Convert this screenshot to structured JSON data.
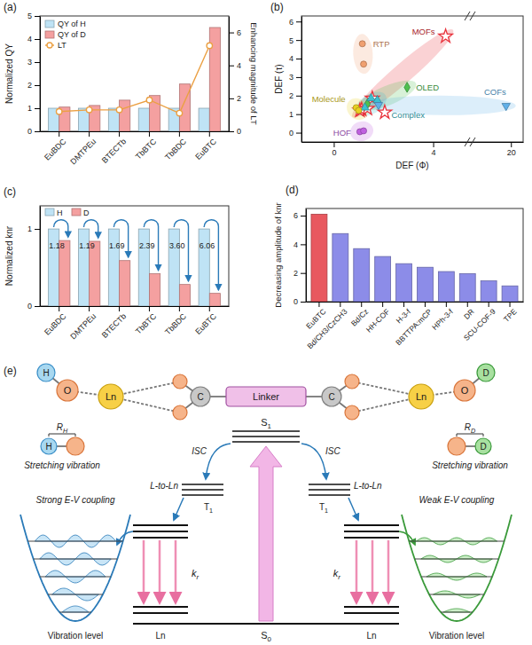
{
  "chart_data": [
    {
      "panel": "(a)",
      "type": "bar",
      "categories": [
        "EuBDC",
        "DMTPEu",
        "BTECTb",
        "TbBTC",
        "TbBDC",
        "EuBTC"
      ],
      "series": [
        {
          "name": "QY of H",
          "type": "bar",
          "color": "#bfe3f5",
          "values": [
            1,
            1,
            1,
            1,
            1,
            1
          ]
        },
        {
          "name": "QY of D",
          "type": "bar",
          "color": "#f4a0a0",
          "values": [
            1.05,
            1.12,
            1.35,
            1.55,
            2.05,
            4.5
          ]
        },
        {
          "name": "LT",
          "type": "line",
          "marker": "circle",
          "color": "#eba043",
          "axis": "y2",
          "values": [
            1.2,
            1.3,
            1.3,
            1.9,
            1.1,
            5.2
          ]
        }
      ],
      "y_title": "Normalized QY",
      "y2_title": "Enhancing magnitude of LT",
      "ylim": [
        0,
        5
      ],
      "yticks": [
        0,
        1,
        2,
        3,
        4,
        5
      ],
      "y2lim": [
        0,
        7
      ],
      "y2ticks": [
        0,
        2,
        4,
        6
      ],
      "legend": "upper left"
    },
    {
      "panel": "(b)",
      "type": "scatter",
      "series": [
        {
          "name": "RTP",
          "color": "#f0a070",
          "marker": "circle",
          "x": [
            1.15,
            1.2
          ],
          "y": [
            4.8,
            3.7
          ]
        },
        {
          "name": "MOFs",
          "color": "#e8323c",
          "marker": "star",
          "x": [
            1.05,
            1.12,
            1.35,
            1.55,
            2.05,
            4.5
          ],
          "y": [
            1.2,
            1.25,
            1.3,
            1.85,
            1.1,
            5.2
          ]
        },
        {
          "name": "OLED",
          "color": "#4fc04f",
          "marker": "diamond",
          "x": [
            1.35,
            2.95
          ],
          "y": [
            1.55,
            2.45
          ]
        },
        {
          "name": "Complex",
          "color": "#3cc0d0",
          "marker": "triangle",
          "x": [
            1.5,
            1.75,
            1.25
          ],
          "y": [
            1.85,
            1.75,
            1.35
          ]
        },
        {
          "name": "Molecule",
          "color": "#e8d020",
          "marker": "circle",
          "x": [
            0.9,
            1.0
          ],
          "y": [
            1.35,
            1.2
          ]
        },
        {
          "name": "COFs",
          "color": "#60b0e8",
          "marker": "triangle-down",
          "x": [
            1.8,
            19.2
          ],
          "y": [
            1.5,
            1.45
          ]
        },
        {
          "name": "HOF",
          "color": "#c060e0",
          "marker": "circle",
          "x": [
            1.05,
            1.2
          ],
          "y": [
            0.05,
            0.1
          ]
        }
      ],
      "x_title": "DEF (Φ)",
      "y_title": "DEF (τ)",
      "xlim": [
        -1.3,
        22
      ],
      "x_break": [
        5.3,
        14
      ],
      "xticks": [
        0,
        4,
        20
      ],
      "ylim": [
        -0.5,
        6.3
      ],
      "yticks": [
        0,
        1,
        2,
        3,
        4,
        5,
        6
      ]
    },
    {
      "panel": "(c)",
      "type": "bar",
      "categories": [
        "EuBDC",
        "DMTPEu",
        "BTECTb",
        "TbBTC",
        "TbBDC",
        "EuBTC"
      ],
      "series": [
        {
          "name": "H",
          "color": "#bfe3f5",
          "values": [
            1,
            1,
            1,
            1,
            1,
            1
          ]
        },
        {
          "name": "D",
          "color": "#f4a0a0",
          "values": [
            0.85,
            0.84,
            0.59,
            0.42,
            0.28,
            0.165
          ]
        }
      ],
      "annotations": [
        "1.18",
        "1.19",
        "1.69",
        "2.39",
        "3.60",
        "6.06"
      ],
      "y_title": "Normalized knr",
      "ylim": [
        0,
        1.3
      ],
      "yticks": [
        0,
        1
      ],
      "legend": "upper left"
    },
    {
      "panel": "(d)",
      "type": "bar",
      "categories": [
        "EuBTC",
        "Bd/CH3/CzCH3",
        "Bd/Cz",
        "HH-COF",
        "H-3-f",
        "BBTTPA:mCP",
        "HPh-3-f",
        "DR",
        "SCU-COF-9",
        "TPE"
      ],
      "values": [
        6.1,
        4.75,
        3.7,
        3.15,
        2.65,
        2.4,
        2.1,
        1.95,
        1.45,
        1.1
      ],
      "colors": [
        "#e8585f",
        "#8c8ce8",
        "#8c8ce8",
        "#8c8ce8",
        "#8c8ce8",
        "#8c8ce8",
        "#8c8ce8",
        "#8c8ce8",
        "#8c8ce8",
        "#8c8ce8"
      ],
      "y_title": "Decreasing amplitude of knr",
      "ylim": [
        0,
        6.5
      ],
      "yticks": [
        0,
        2,
        4,
        6
      ]
    }
  ],
  "diagram": {
    "panel": "(e)",
    "top_row": {
      "h": "H",
      "o_left": "O",
      "ln_left": "Ln",
      "c_left": "C",
      "linker": "Linker",
      "c_right": "C",
      "ln_right": "Ln",
      "o_right": "O",
      "d": "D"
    },
    "stretch_left": {
      "bond": {
        "main": "R",
        "sub": "H"
      },
      "atom": "H",
      "caption": "Stretching vibration"
    },
    "stretch_right": {
      "bond": {
        "main": "R",
        "sub": "D"
      },
      "atom": "D",
      "caption": "Stretching vibration"
    },
    "singlet": {
      "main": "S",
      "sub": "1"
    },
    "isc_left": "ISC",
    "isc_right": "ISC",
    "triplet_left": {
      "main": "T",
      "sub": "1"
    },
    "triplet_right": {
      "main": "T",
      "sub": "1"
    },
    "transfer_left": "L-to-Ln",
    "transfer_right": "L-to-Ln",
    "coupling_left": "Strong E-V coupling",
    "coupling_right": "Weak E-V coupling",
    "kr_left": {
      "main": "k",
      "sub": "r"
    },
    "kr_right": {
      "main": "k",
      "sub": "r"
    },
    "vibration_left": "Vibration level",
    "vibration_right": "Vibration level",
    "ln_bottom_left": "Ln",
    "ln_bottom_right": "Ln",
    "ground": {
      "main": "S",
      "sub": "0"
    }
  }
}
